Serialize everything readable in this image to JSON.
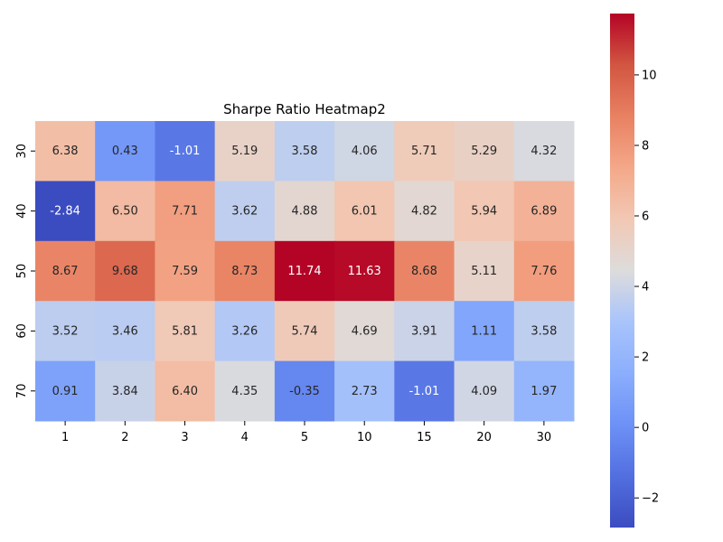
{
  "chart_data": {
    "type": "heatmap",
    "title": "Sharpe Ratio Heatmap2",
    "xlabel": "",
    "ylabel": "",
    "x_categories": [
      "1",
      "2",
      "3",
      "4",
      "5",
      "10",
      "15",
      "20",
      "30"
    ],
    "y_categories": [
      "30",
      "40",
      "50",
      "60",
      "70"
    ],
    "values": [
      [
        6.38,
        0.43,
        -1.01,
        5.19,
        3.58,
        4.06,
        5.71,
        5.29,
        4.32
      ],
      [
        -2.84,
        6.5,
        7.71,
        3.62,
        4.88,
        6.01,
        4.82,
        5.94,
        6.89
      ],
      [
        8.67,
        9.68,
        7.59,
        8.73,
        11.74,
        11.63,
        8.68,
        5.11,
        7.76
      ],
      [
        3.52,
        3.46,
        5.81,
        3.26,
        5.74,
        4.69,
        3.91,
        1.11,
        3.58
      ],
      [
        0.91,
        3.84,
        6.4,
        4.35,
        -0.35,
        2.73,
        -1.01,
        4.09,
        1.97
      ]
    ],
    "value_format": "0.00",
    "colormap": "coolwarm",
    "vmin": -2.84,
    "vmax": 11.74,
    "colorbar": {
      "ticks": [
        -2,
        0,
        2,
        4,
        6,
        8,
        10
      ],
      "tick_labels": [
        "−2",
        "0",
        "2",
        "4",
        "6",
        "8",
        "10"
      ],
      "placement": "right"
    },
    "grid": false
  }
}
